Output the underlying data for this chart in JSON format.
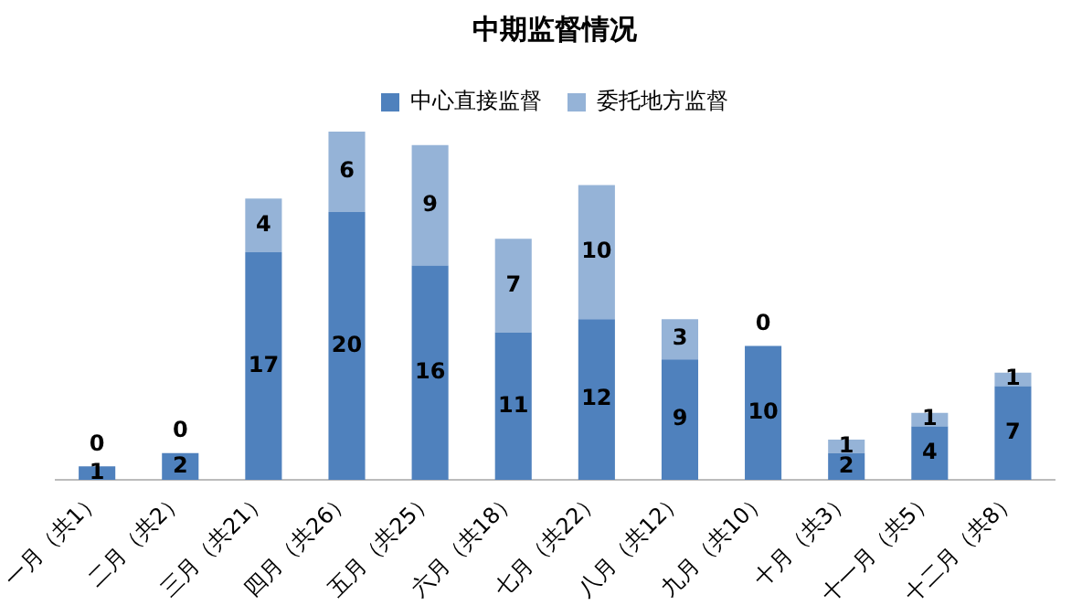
{
  "chart_data": {
    "type": "bar",
    "title": "中期监督情况",
    "stacked": true,
    "legend": "top",
    "data_labels": true,
    "grid": false,
    "categories": [
      "一月（共1）",
      "二月（共2）",
      "三月（共21）",
      "四月（共26）",
      "五月（共25）",
      "六月（共18）",
      "七月（共22）",
      "八月（共12）",
      "九月（共10）",
      "十月（共3）",
      "十一月（共5）",
      "十二月（共8）"
    ],
    "series": [
      {
        "name": "中心直接监督",
        "color": "#4f81bd",
        "values": [
          1,
          2,
          17,
          20,
          16,
          11,
          12,
          9,
          10,
          2,
          4,
          7
        ]
      },
      {
        "name": "委托地方监督",
        "color": "#95b3d7",
        "values": [
          0,
          0,
          4,
          6,
          9,
          7,
          10,
          3,
          0,
          1,
          1,
          1
        ]
      }
    ]
  }
}
